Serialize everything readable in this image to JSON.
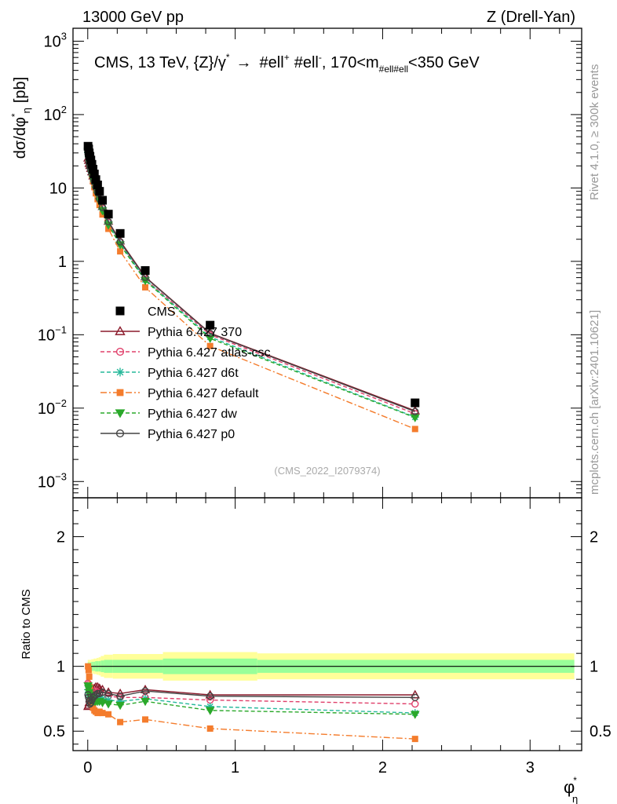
{
  "header": {
    "energy": "13000 GeV pp",
    "process": "Z (Drell-Yan)"
  },
  "side_labels": {
    "rivet": "Rivet 4.1.0, ≥ 300k events",
    "mcplots": "mcplots.cern.ch [arXiv:2401.10621]"
  },
  "chart_data": {
    "type": "line",
    "title_parts": {
      "prefix": "CMS, 13 TeV, {Z}/γ",
      "sup1": "*",
      "arrow": "→",
      "mid": "#ell",
      "sup2": "+",
      "mid2": "#ell",
      "sup3": "-",
      "cut1": ", 170<m",
      "sub": "#ell#ell",
      "cut2": "<350 GeV"
    },
    "ylabel_main": {
      "d": "dσ/dφ",
      "sup": "*",
      "sub": "η",
      "unit": "[pb]"
    },
    "ylabel_ratio": "Ratio to CMS",
    "xlabel": {
      "base": "φ",
      "sup": "*",
      "sub": "η"
    },
    "watermark": "(CMS_2022_I2079374)",
    "xlim": [
      -0.1,
      3.35
    ],
    "ylim_main": [
      0.0006,
      1500
    ],
    "ylim_ratio": [
      0.35,
      2.3
    ],
    "x_ticks": [
      0,
      1,
      2,
      3
    ],
    "x_tick_labels": [
      "0",
      "1",
      "2",
      "3"
    ],
    "y_main_ticks": [
      {
        "value": 0.001,
        "base": "10",
        "exp": "−3"
      },
      {
        "value": 0.01,
        "base": "10",
        "exp": "−2"
      },
      {
        "value": 0.1,
        "base": "10",
        "exp": "−1"
      },
      {
        "value": 1,
        "base": "1",
        "exp": ""
      },
      {
        "value": 10,
        "base": "10",
        "exp": ""
      },
      {
        "value": 100,
        "base": "10",
        "exp": "2"
      },
      {
        "value": 1000,
        "base": "10",
        "exp": "3"
      }
    ],
    "y_ratio_ticks": [
      {
        "value": 0.5,
        "label": "0.5"
      },
      {
        "value": 1,
        "label": "1"
      },
      {
        "value": 2,
        "label": "2"
      }
    ],
    "x": [
      0.002,
      0.006,
      0.01,
      0.015,
      0.021,
      0.028,
      0.036,
      0.045,
      0.055,
      0.067,
      0.08,
      0.1,
      0.14,
      0.22,
      0.39,
      0.83,
      2.22
    ],
    "bin_edges": [
      0,
      0.004,
      0.008,
      0.012,
      0.018,
      0.024,
      0.032,
      0.04,
      0.05,
      0.06,
      0.074,
      0.088,
      0.11,
      0.17,
      0.27,
      0.51,
      1.15,
      3.3
    ],
    "data": {
      "name": "CMS",
      "values": [
        37,
        34,
        30,
        27,
        24,
        21,
        18,
        15.5,
        13,
        11,
        9,
        6.8,
        4.4,
        2.4,
        0.75,
        0.135,
        0.0118
      ],
      "band_inner": [
        0.03,
        0.03,
        0.03,
        0.03,
        0.03,
        0.035,
        0.035,
        0.035,
        0.04,
        0.04,
        0.04,
        0.045,
        0.05,
        0.05,
        0.05,
        0.06,
        0.05
      ],
      "band_outer": [
        0.05,
        0.05,
        0.05,
        0.05,
        0.05,
        0.055,
        0.055,
        0.06,
        0.06,
        0.065,
        0.07,
        0.08,
        0.09,
        0.095,
        0.095,
        0.11,
        0.1
      ]
    },
    "series": [
      {
        "name": "Pythia 6.427 370",
        "color": "#8b1a2b",
        "dash": "",
        "marker": "triangle-open",
        "ratio": [
          0.69,
          0.7,
          0.72,
          0.75,
          0.77,
          0.79,
          0.81,
          0.83,
          0.84,
          0.84,
          0.83,
          0.82,
          0.8,
          0.79,
          0.82,
          0.78,
          0.78
        ]
      },
      {
        "name": "Pythia 6.427 atlas-csc",
        "color": "#e0406b",
        "dash": "5,3",
        "marker": "circle-open",
        "ratio": [
          0.87,
          0.86,
          0.83,
          0.8,
          0.78,
          0.78,
          0.79,
          0.8,
          0.81,
          0.8,
          0.79,
          0.78,
          0.77,
          0.76,
          0.76,
          0.74,
          0.71
        ]
      },
      {
        "name": "Pythia 6.427 d6t",
        "color": "#25b89a",
        "dash": "5,3",
        "marker": "star",
        "ratio": [
          0.82,
          0.8,
          0.78,
          0.76,
          0.75,
          0.75,
          0.76,
          0.77,
          0.76,
          0.75,
          0.75,
          0.75,
          0.74,
          0.73,
          0.75,
          0.69,
          0.64
        ]
      },
      {
        "name": "Pythia 6.427 default",
        "color": "#f47c2c",
        "dash": "8,3,2,3",
        "marker": "square",
        "ratio": [
          1.0,
          0.97,
          0.92,
          0.84,
          0.76,
          0.71,
          0.68,
          0.66,
          0.65,
          0.64,
          0.65,
          0.64,
          0.63,
          0.57,
          0.59,
          0.52,
          0.44
        ]
      },
      {
        "name": "Pythia 6.427 dw",
        "color": "#2aa82a",
        "dash": "5,3",
        "marker": "triangle-down",
        "ratio": [
          0.85,
          0.83,
          0.8,
          0.78,
          0.76,
          0.74,
          0.73,
          0.73,
          0.73,
          0.73,
          0.73,
          0.72,
          0.71,
          0.7,
          0.73,
          0.66,
          0.63
        ]
      },
      {
        "name": "Pythia 6.427 p0",
        "color": "#444444",
        "dash": "",
        "marker": "circle-open",
        "ratio": [
          0.78,
          0.76,
          0.73,
          0.71,
          0.72,
          0.74,
          0.76,
          0.77,
          0.78,
          0.79,
          0.79,
          0.8,
          0.79,
          0.77,
          0.81,
          0.77,
          0.76
        ]
      }
    ],
    "legend_position": "left-middle"
  }
}
